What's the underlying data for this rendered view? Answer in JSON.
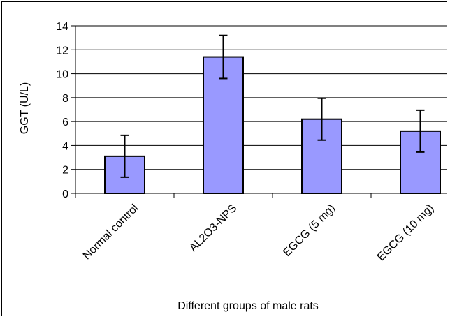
{
  "chart_data": {
    "type": "bar",
    "title": "",
    "xlabel": "Different groups of male rats",
    "ylabel": "GGT (U/L)",
    "categories": [
      "Normal control",
      "AL2O3-NPS",
      "EGCG (5 mg)",
      "EGCG (10 mg)"
    ],
    "values": [
      3.1,
      11.4,
      6.2,
      5.2
    ],
    "error": [
      1.75,
      1.8,
      1.75,
      1.75
    ],
    "ylim": [
      0,
      14
    ],
    "yticks": [
      0,
      2,
      4,
      6,
      8,
      10,
      12,
      14
    ],
    "grid": true,
    "legend": "none",
    "colors": {
      "bar_fill": "#9999ff",
      "bar_stroke": "#000000",
      "grid": "#000000"
    }
  }
}
